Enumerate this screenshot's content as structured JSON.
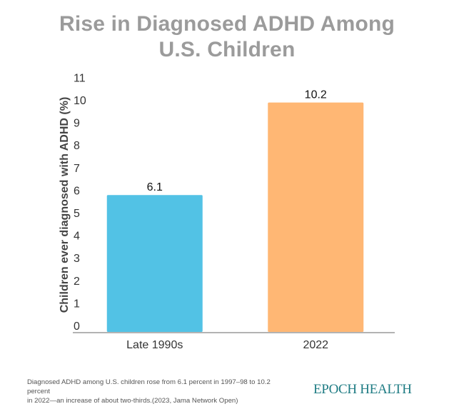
{
  "chart_data": {
    "type": "bar",
    "title_lines": [
      "Rise in Diagnosed ADHD Among",
      "U.S. Children"
    ],
    "xlabel": "",
    "ylabel": "Children ever diagnosed with ADHD (%)",
    "categories": [
      "Late 1990s",
      "2022"
    ],
    "values": [
      6.1,
      10.2
    ],
    "data_labels": [
      "6.1",
      "10.2"
    ],
    "colors": [
      "#52c2e5",
      "#ffb774"
    ],
    "ylim": [
      0,
      11
    ],
    "yticks": [
      0,
      1,
      2,
      3,
      4,
      5,
      6,
      7,
      8,
      9,
      10,
      11
    ],
    "ytick_labels": [
      "0",
      "1",
      "2",
      "3",
      "4",
      "5",
      "6",
      "7",
      "8",
      "9",
      "10",
      "11"
    ],
    "grid": false,
    "legend": "none"
  },
  "footer": {
    "note_line1": "Diagnosed ADHD among U.S. children rose from 6.1 percent in 1997–98 to 10.2 percent",
    "note_line2": "in 2022—an increase of about two-thirds.(2023, Jama Network Open)",
    "brand": "EPOCH HEALTH",
    "brand_color": "#1f7c84"
  }
}
